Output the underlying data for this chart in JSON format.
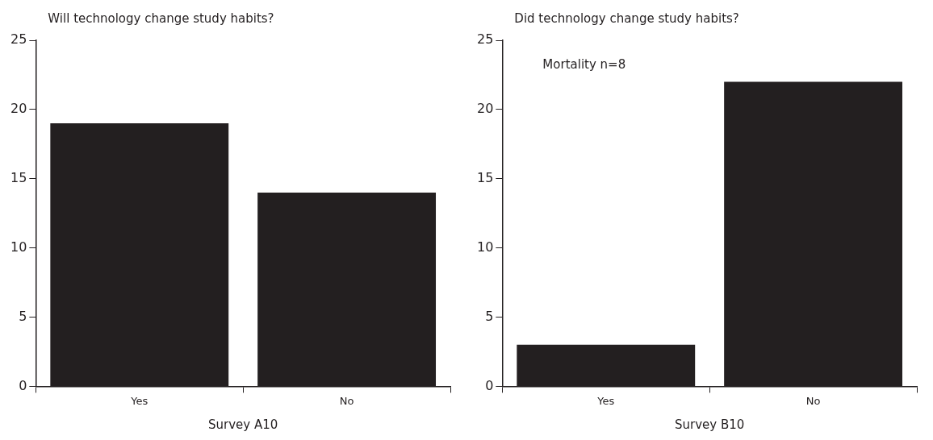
{
  "chart_data": [
    {
      "type": "bar",
      "title": "Will technology change study habits?",
      "xlabel": "Survey A10",
      "categories": [
        "Yes",
        "No"
      ],
      "values": [
        19,
        14
      ],
      "color": "#231f20",
      "ylim": [
        0,
        25
      ],
      "yticks": [
        0,
        5,
        10,
        15,
        20,
        25
      ],
      "grid": false,
      "legend": false
    },
    {
      "type": "bar",
      "title": "Did technology change study habits?",
      "xlabel": "Survey B10",
      "annotations": [
        "Mortality n=8"
      ],
      "categories": [
        "Yes",
        "No"
      ],
      "values": [
        3,
        22
      ],
      "color": "#231f20",
      "ylim": [
        0,
        25
      ],
      "yticks": [
        0,
        5,
        10,
        15,
        20,
        25
      ],
      "grid": false,
      "legend": false
    }
  ]
}
